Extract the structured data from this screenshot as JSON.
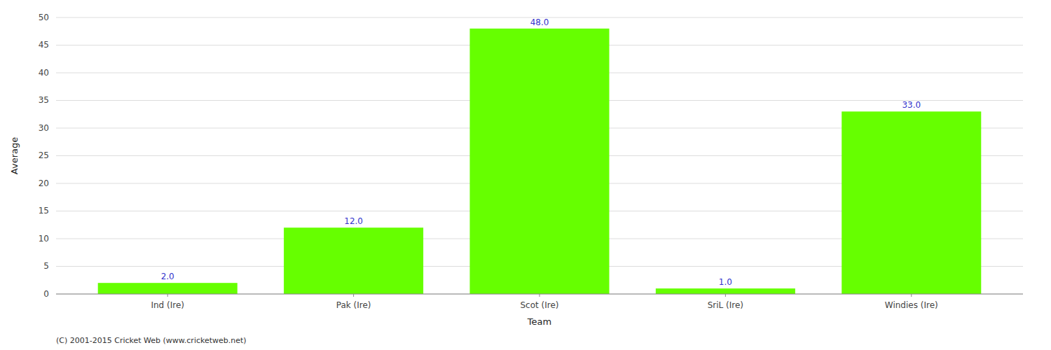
{
  "chart_data": {
    "type": "bar",
    "categories": [
      "Ind (Ire)",
      "Pak (Ire)",
      "Scot (Ire)",
      "SriL (Ire)",
      "Windies (Ire)"
    ],
    "values": [
      2.0,
      12.0,
      48.0,
      1.0,
      33.0
    ],
    "value_labels": [
      "2.0",
      "12.0",
      "48.0",
      "1.0",
      "33.0"
    ],
    "data_labels": true,
    "color": "#66ff00",
    "xlabel": "Team",
    "ylabel": "Average",
    "ylim": [
      0,
      50
    ],
    "yticks": [
      0,
      5,
      10,
      15,
      20,
      25,
      30,
      35,
      40,
      45,
      50
    ],
    "grid": true,
    "annotations": [
      "(C) 2001-2015 Cricket Web (www.cricketweb.net)"
    ]
  }
}
